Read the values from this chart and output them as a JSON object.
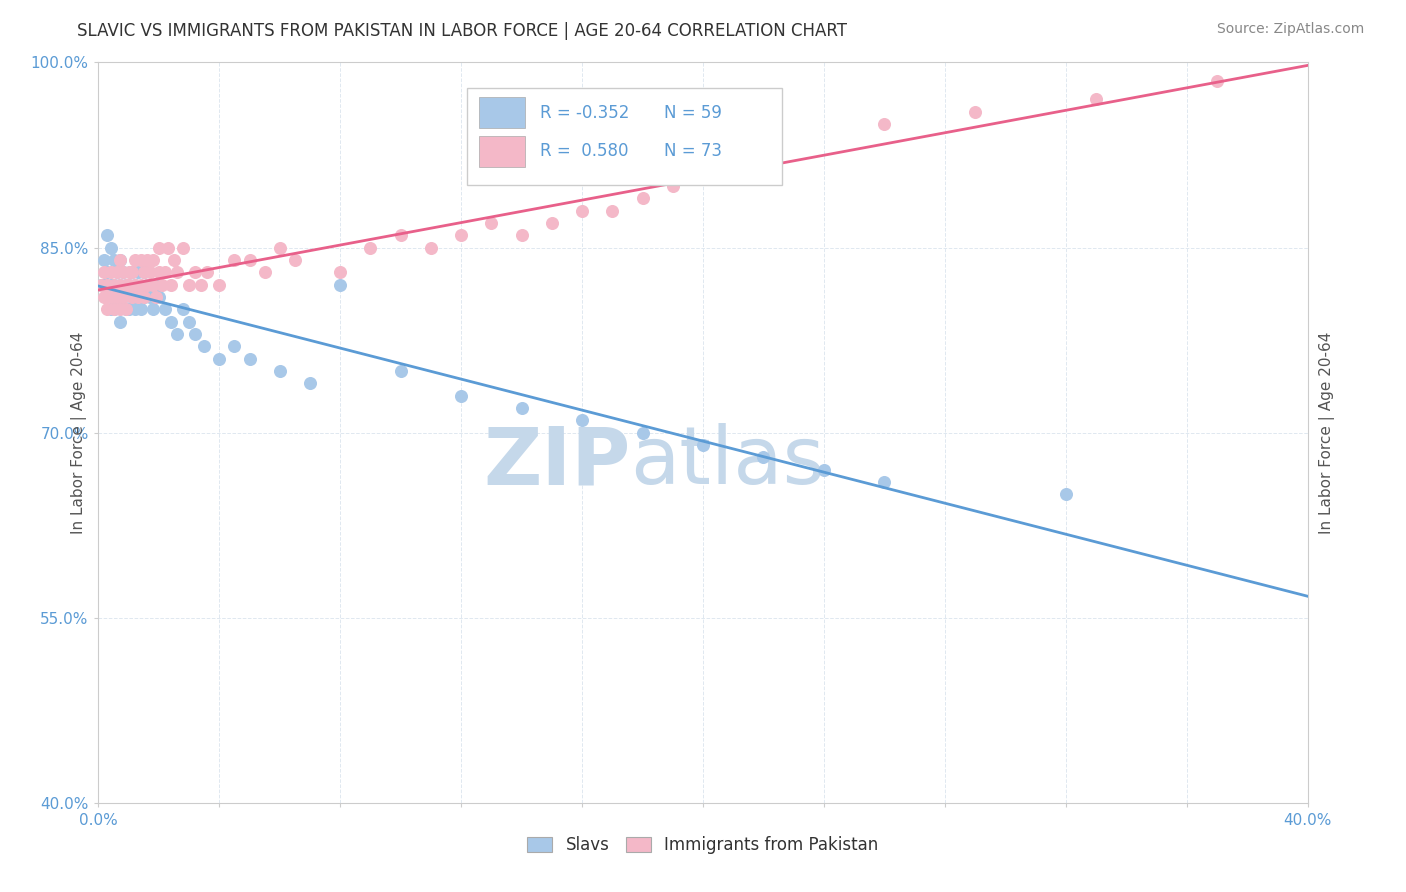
{
  "title": "SLAVIC VS IMMIGRANTS FROM PAKISTAN IN LABOR FORCE | AGE 20-64 CORRELATION CHART",
  "source": "Source: ZipAtlas.com",
  "ylabel": "In Labor Force | Age 20-64",
  "xlim": [
    0.0,
    0.4
  ],
  "ylim": [
    0.4,
    1.0
  ],
  "xticks": [
    0.0,
    0.04,
    0.08,
    0.12,
    0.16,
    0.2,
    0.24,
    0.28,
    0.32,
    0.36,
    0.4
  ],
  "yticks": [
    0.4,
    0.55,
    0.7,
    0.85,
    1.0
  ],
  "ytick_labels": [
    "40.0%",
    "55.0%",
    "70.0%",
    "85.0%",
    "100.0%"
  ],
  "xtick_labels_first": "0.0%",
  "xtick_labels_last": "40.0%",
  "blue_color": "#a8c8e8",
  "pink_color": "#f4b8c8",
  "blue_line_color": "#5b9bd5",
  "pink_line_color": "#e8608a",
  "legend_blue_R": "-0.352",
  "legend_blue_N": "59",
  "legend_pink_R": "0.580",
  "legend_pink_N": "73",
  "slavs_x": [
    0.001,
    0.002,
    0.002,
    0.003,
    0.003,
    0.004,
    0.004,
    0.004,
    0.005,
    0.005,
    0.005,
    0.006,
    0.006,
    0.007,
    0.007,
    0.007,
    0.008,
    0.008,
    0.009,
    0.009,
    0.01,
    0.01,
    0.011,
    0.011,
    0.012,
    0.012,
    0.013,
    0.013,
    0.014,
    0.015,
    0.015,
    0.016,
    0.017,
    0.018,
    0.019,
    0.02,
    0.022,
    0.024,
    0.026,
    0.028,
    0.03,
    0.032,
    0.035,
    0.04,
    0.045,
    0.05,
    0.06,
    0.07,
    0.08,
    0.1,
    0.12,
    0.14,
    0.16,
    0.18,
    0.2,
    0.22,
    0.24,
    0.26,
    0.32
  ],
  "slavs_y": [
    0.82,
    0.84,
    0.82,
    0.86,
    0.83,
    0.85,
    0.82,
    0.8,
    0.84,
    0.82,
    0.8,
    0.83,
    0.81,
    0.84,
    0.82,
    0.79,
    0.83,
    0.81,
    0.82,
    0.8,
    0.82,
    0.8,
    0.83,
    0.81,
    0.82,
    0.8,
    0.83,
    0.81,
    0.8,
    0.83,
    0.81,
    0.82,
    0.81,
    0.8,
    0.82,
    0.81,
    0.8,
    0.79,
    0.78,
    0.8,
    0.79,
    0.78,
    0.77,
    0.76,
    0.77,
    0.76,
    0.75,
    0.74,
    0.82,
    0.75,
    0.73,
    0.72,
    0.71,
    0.7,
    0.69,
    0.68,
    0.67,
    0.66,
    0.65
  ],
  "pakistan_x": [
    0.001,
    0.002,
    0.002,
    0.003,
    0.003,
    0.004,
    0.004,
    0.005,
    0.005,
    0.006,
    0.006,
    0.007,
    0.007,
    0.007,
    0.008,
    0.008,
    0.009,
    0.009,
    0.01,
    0.01,
    0.011,
    0.011,
    0.012,
    0.012,
    0.013,
    0.014,
    0.014,
    0.015,
    0.015,
    0.016,
    0.016,
    0.017,
    0.018,
    0.018,
    0.019,
    0.02,
    0.02,
    0.021,
    0.022,
    0.023,
    0.024,
    0.025,
    0.026,
    0.028,
    0.03,
    0.032,
    0.034,
    0.036,
    0.04,
    0.045,
    0.05,
    0.055,
    0.06,
    0.065,
    0.08,
    0.09,
    0.1,
    0.11,
    0.12,
    0.13,
    0.14,
    0.15,
    0.16,
    0.17,
    0.18,
    0.19,
    0.2,
    0.21,
    0.22,
    0.26,
    0.29,
    0.33,
    0.37
  ],
  "pakistan_y": [
    0.82,
    0.83,
    0.81,
    0.82,
    0.8,
    0.83,
    0.81,
    0.82,
    0.8,
    0.83,
    0.81,
    0.82,
    0.84,
    0.8,
    0.83,
    0.81,
    0.82,
    0.8,
    0.83,
    0.82,
    0.83,
    0.81,
    0.82,
    0.84,
    0.81,
    0.82,
    0.84,
    0.83,
    0.81,
    0.82,
    0.84,
    0.83,
    0.82,
    0.84,
    0.81,
    0.83,
    0.85,
    0.82,
    0.83,
    0.85,
    0.82,
    0.84,
    0.83,
    0.85,
    0.82,
    0.83,
    0.82,
    0.83,
    0.82,
    0.84,
    0.84,
    0.83,
    0.85,
    0.84,
    0.83,
    0.85,
    0.86,
    0.85,
    0.86,
    0.87,
    0.86,
    0.87,
    0.88,
    0.88,
    0.89,
    0.9,
    0.91,
    0.92,
    0.93,
    0.95,
    0.96,
    0.97,
    0.985
  ],
  "watermark_zip": "ZIP",
  "watermark_atlas": "atlas",
  "watermark_color": "#c5d8ea",
  "background_color": "#ffffff",
  "grid_color": "#e0e8f0",
  "title_color": "#333333",
  "axis_label_color": "#555555",
  "tick_color": "#5b9bd5",
  "source_color": "#888888",
  "blue_dot_size": 70,
  "pink_dot_size": 70
}
